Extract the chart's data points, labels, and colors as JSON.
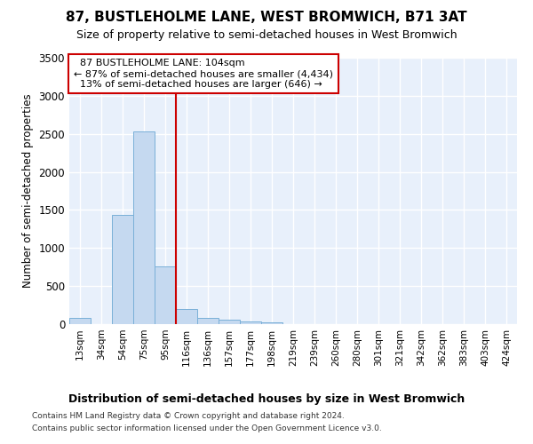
{
  "title": "87, BUSTLEHOLME LANE, WEST BROMWICH, B71 3AT",
  "subtitle": "Size of property relative to semi-detached houses in West Bromwich",
  "xlabel": "Distribution of semi-detached houses by size in West Bromwich",
  "ylabel": "Number of semi-detached properties",
  "footer1": "Contains HM Land Registry data © Crown copyright and database right 2024.",
  "footer2": "Contains public sector information licensed under the Open Government Licence v3.0.",
  "categories": [
    "13sqm",
    "34sqm",
    "54sqm",
    "75sqm",
    "95sqm",
    "116sqm",
    "136sqm",
    "157sqm",
    "177sqm",
    "198sqm",
    "219sqm",
    "239sqm",
    "260sqm",
    "280sqm",
    "301sqm",
    "321sqm",
    "342sqm",
    "362sqm",
    "383sqm",
    "403sqm",
    "424sqm"
  ],
  "values": [
    80,
    0,
    1440,
    2530,
    760,
    200,
    80,
    60,
    35,
    20,
    0,
    0,
    0,
    0,
    0,
    0,
    0,
    0,
    0,
    0,
    0
  ],
  "bar_color": "#c5d9f0",
  "bar_edge_color": "#7ab0d8",
  "ylim": [
    0,
    3500
  ],
  "yticks": [
    0,
    500,
    1000,
    1500,
    2000,
    2500,
    3000,
    3500
  ],
  "property_label": "87 BUSTLEHOLME LANE: 104sqm",
  "pct_smaller": 87,
  "n_smaller": 4434,
  "pct_larger": 13,
  "n_larger": 646,
  "vline_color": "#cc0000",
  "annotation_box_color": "#cc0000",
  "vline_x_index": 4.5,
  "background_color": "#e8f0fb",
  "grid_color": "#ffffff",
  "title_fontsize": 11,
  "subtitle_fontsize": 9
}
